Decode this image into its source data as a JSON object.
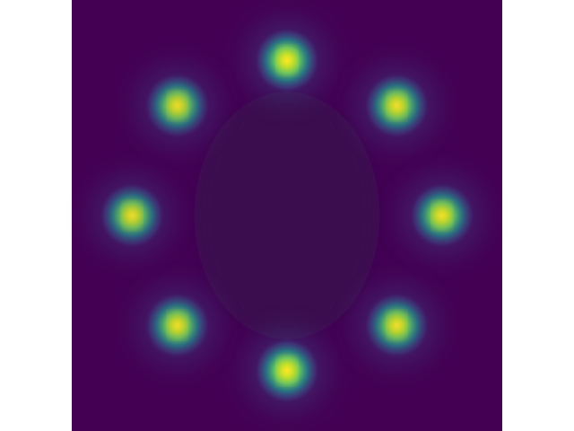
{
  "chart_data": {
    "type": "heatmap",
    "title": "",
    "xlabel": "",
    "ylabel": "",
    "axes_visible": false,
    "grid": false,
    "colormap": "viridis",
    "colors": {
      "background": "#440154",
      "inner_region": "#3a0750",
      "low": "#3b528b",
      "mid": "#21918c",
      "high": "#5ec962",
      "peak": "#fde725",
      "figure_background": "#ffffff"
    },
    "x_range": [
      -1,
      1
    ],
    "y_range": [
      -1,
      1
    ],
    "modes": [
      {
        "x": 0.0,
        "y": 0.72,
        "intensity": 1.0
      },
      {
        "x": 0.51,
        "y": 0.51,
        "intensity": 0.93
      },
      {
        "x": 0.72,
        "y": 0.0,
        "intensity": 0.94
      },
      {
        "x": 0.51,
        "y": -0.51,
        "intensity": 0.93
      },
      {
        "x": 0.0,
        "y": -0.72,
        "intensity": 1.0
      },
      {
        "x": -0.51,
        "y": -0.51,
        "intensity": 0.92
      },
      {
        "x": -0.72,
        "y": 0.0,
        "intensity": 0.9
      },
      {
        "x": -0.51,
        "y": 0.51,
        "intensity": 0.9
      }
    ]
  }
}
